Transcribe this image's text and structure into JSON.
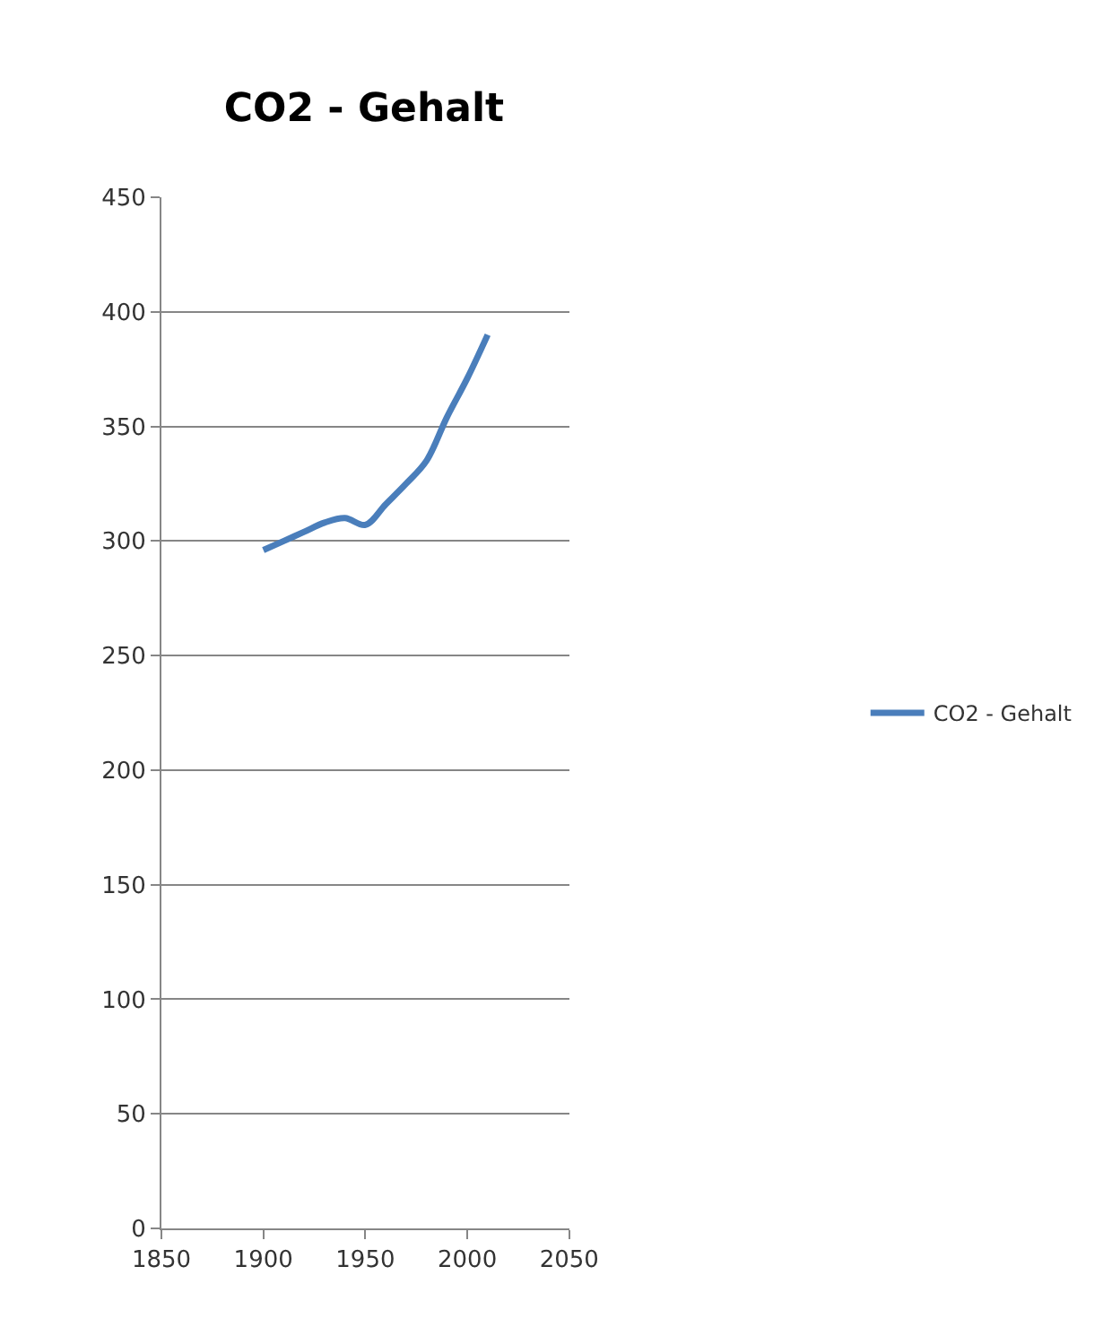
{
  "chart_data": {
    "type": "line",
    "title": "CO2 - Gehalt",
    "x": [
      1900,
      1910,
      1920,
      1930,
      1940,
      1950,
      1960,
      1970,
      1980,
      1990,
      2000,
      2010
    ],
    "series": [
      {
        "name": "CO2 - Gehalt",
        "color": "#4a7ebb",
        "values": [
          296,
          300,
          304,
          308,
          310,
          307,
          316,
          325,
          335,
          354,
          371,
          390
        ]
      }
    ],
    "xlim": [
      1850,
      2050
    ],
    "xticks": [
      1850,
      1900,
      1950,
      2000,
      2050
    ],
    "ylim": [
      0,
      450
    ],
    "yticks": [
      0,
      50,
      100,
      150,
      200,
      250,
      300,
      350,
      400,
      450
    ],
    "grid": "y",
    "legend": "right",
    "marker": "none",
    "line_style": "solid"
  }
}
